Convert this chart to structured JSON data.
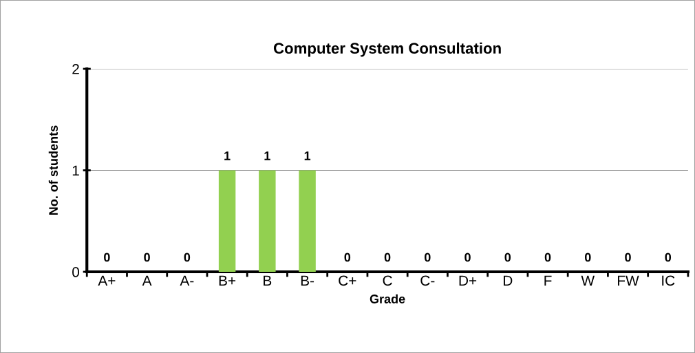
{
  "chart_data": {
    "type": "bar",
    "title": "Computer System Consultation",
    "xlabel": "Grade",
    "ylabel": "No. of students",
    "categories": [
      "A+",
      "A",
      "A-",
      "B+",
      "B",
      "B-",
      "C+",
      "C",
      "C-",
      "D+",
      "D",
      "F",
      "W",
      "FW",
      "IC"
    ],
    "values": [
      0,
      0,
      0,
      1,
      1,
      1,
      0,
      0,
      0,
      0,
      0,
      0,
      0,
      0,
      0
    ],
    "color": "#92d050",
    "ylim": [
      0,
      2
    ],
    "yticks": [
      0,
      1,
      2
    ],
    "grid": "y",
    "data_labels": true
  }
}
